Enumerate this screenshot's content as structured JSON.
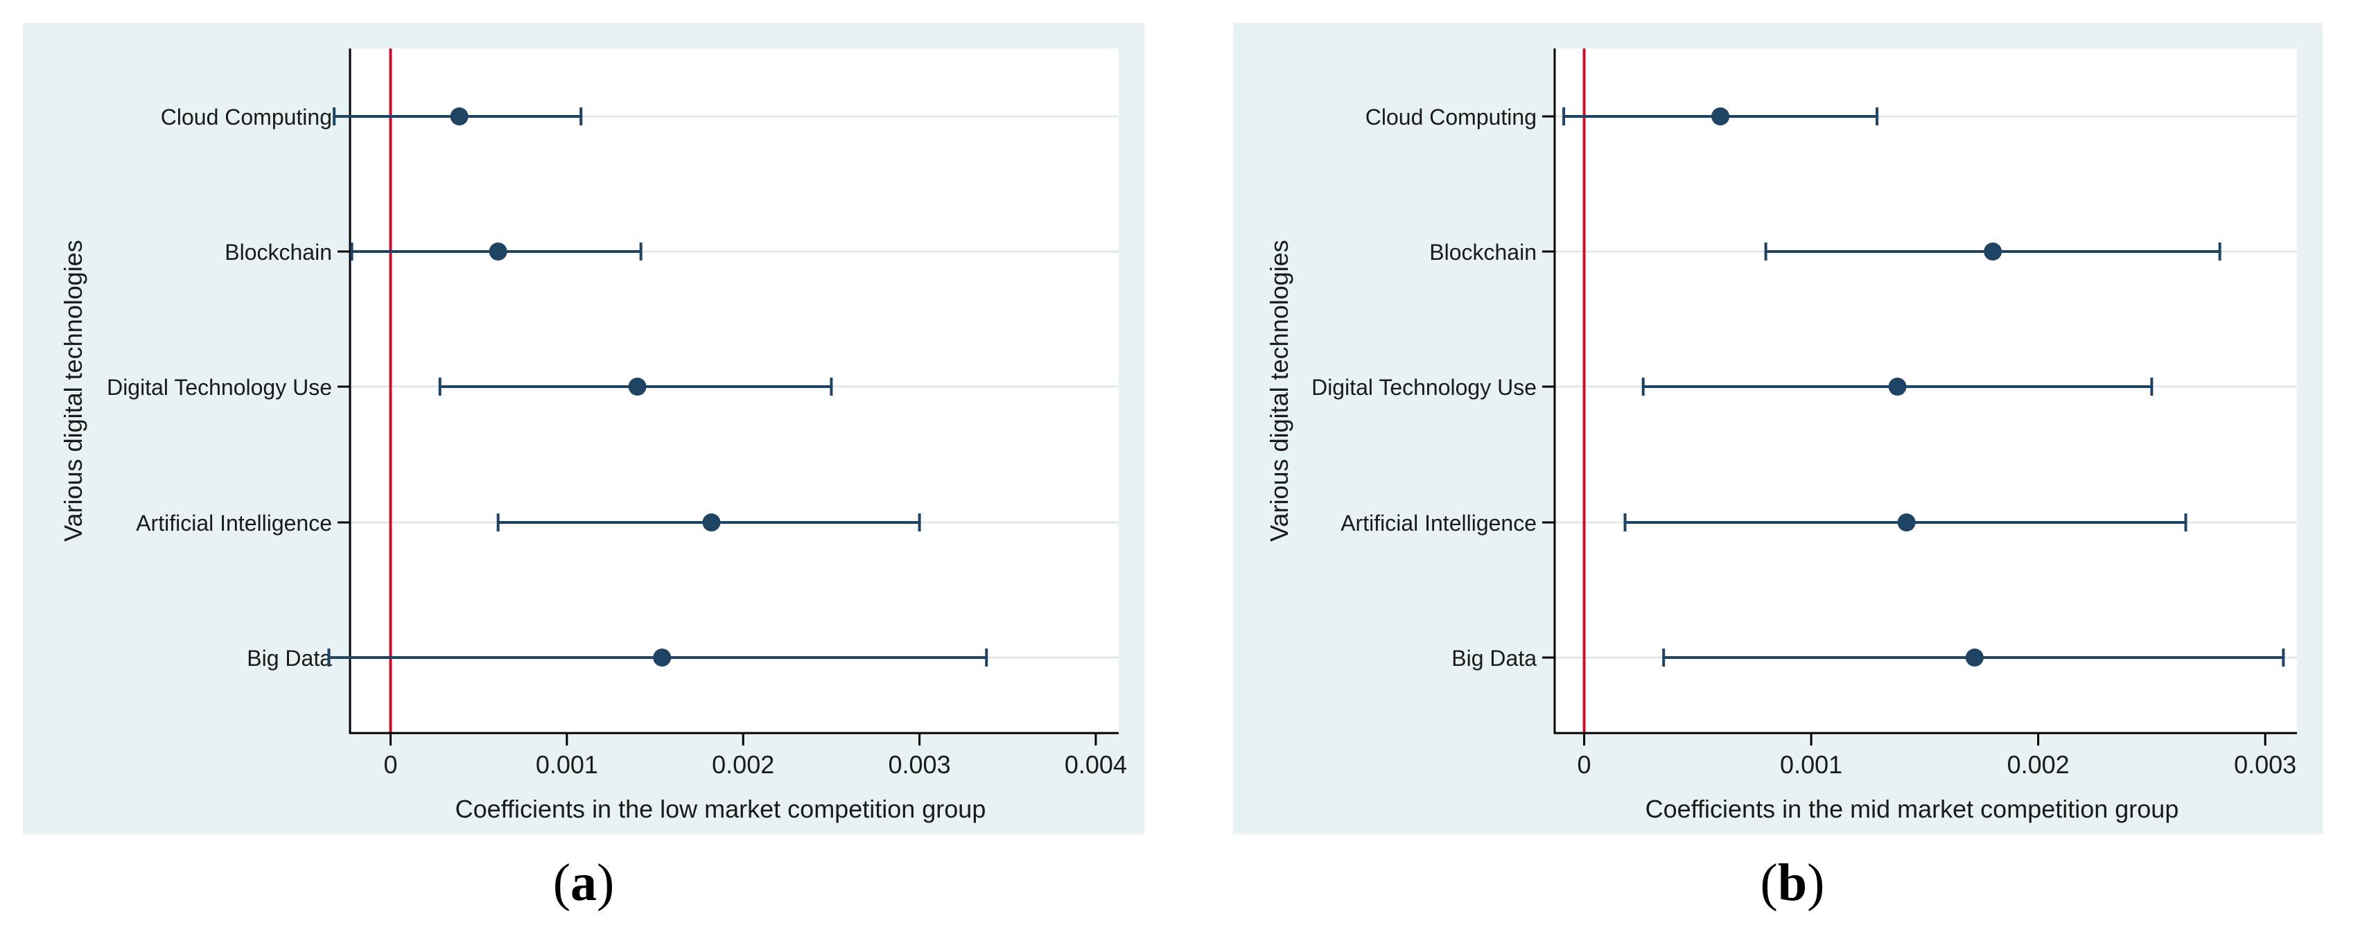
{
  "figure": {
    "captions": [
      {
        "open": "(",
        "letter": "a",
        "close": ")"
      },
      {
        "open": "(",
        "letter": "b",
        "close": ")"
      }
    ]
  },
  "colors": {
    "panel_bg": "#e8f1f3",
    "plot_bg": "#ffffff",
    "grid": "#e3e7e9",
    "axis": "#000000",
    "series": "#1f4363",
    "ref_line": "#c8102e",
    "text": "#1a1a1a"
  },
  "chart_data": [
    {
      "id": "a",
      "type": "coefficient_plot",
      "title": "",
      "xlabel": "Coefficients in the low market competition group",
      "ylabel": "Various digital technologies",
      "xlim": [
        -0.00023,
        0.00413
      ],
      "xticks": [
        0,
        0.001,
        0.002,
        0.003,
        0.004
      ],
      "xtick_labels": [
        "0",
        "0.001",
        "0.002",
        "0.003",
        "0.004"
      ],
      "reference_line": 0,
      "categories": [
        "Cloud Computing",
        "Blockchain",
        "Digital Technology Use",
        "Artificial Intelligence",
        "Big Data"
      ],
      "estimates": [
        0.00039,
        0.00061,
        0.0014,
        0.00182,
        0.00154
      ],
      "ci_low": [
        -0.00032,
        -0.00022,
        0.00028,
        0.00061,
        -0.00035
      ],
      "ci_high": [
        0.00108,
        0.00142,
        0.0025,
        0.003,
        0.00338
      ]
    },
    {
      "id": "b",
      "type": "coefficient_plot",
      "title": "",
      "xlabel": "Coefficients in the mid market competition group",
      "ylabel": "Various digital technologies",
      "xlim": [
        -0.00013,
        0.00314
      ],
      "xticks": [
        0,
        0.001,
        0.002,
        0.003
      ],
      "xtick_labels": [
        "0",
        "0.001",
        "0.002",
        "0.003"
      ],
      "reference_line": 0,
      "categories": [
        "Cloud Computing",
        "Blockchain",
        "Digital Technology Use",
        "Artificial Intelligence",
        "Big Data"
      ],
      "estimates": [
        0.0006,
        0.0018,
        0.00138,
        0.00142,
        0.00172
      ],
      "ci_low": [
        -9e-05,
        0.0008,
        0.00026,
        0.00018,
        0.00035
      ],
      "ci_high": [
        0.00129,
        0.0028,
        0.0025,
        0.00265,
        0.00308
      ]
    }
  ]
}
